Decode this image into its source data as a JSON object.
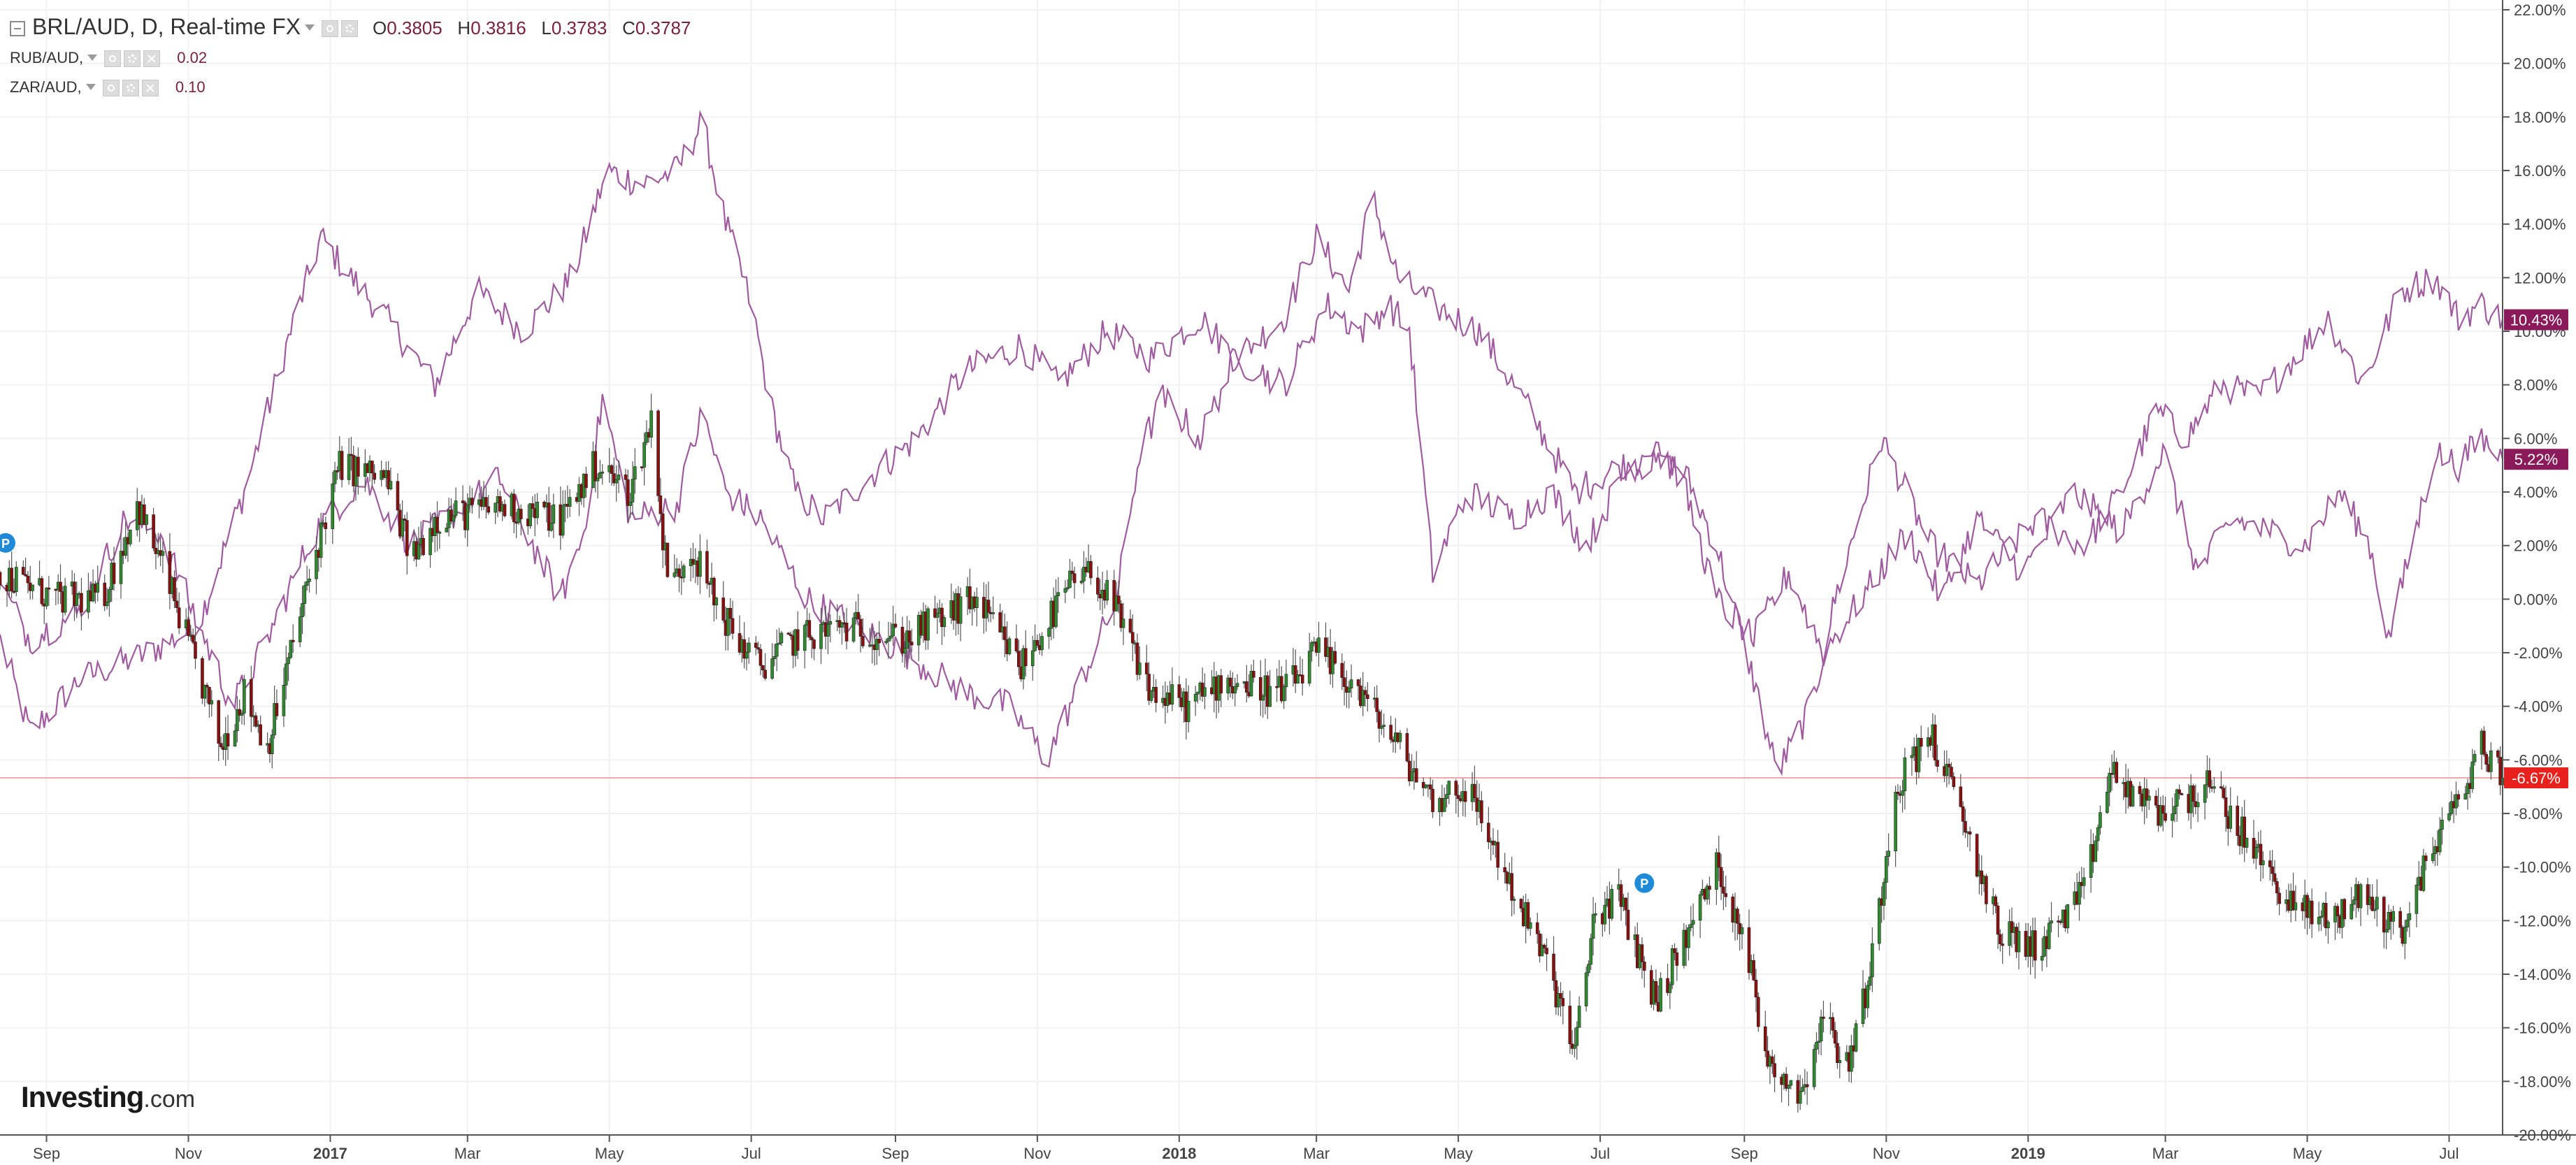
{
  "header": {
    "main": {
      "symbol": "BRL/AUD, D, Real-time FX",
      "ohlc": [
        {
          "label": "O",
          "value": "0.3805"
        },
        {
          "label": "H",
          "value": "0.3816"
        },
        {
          "label": "L",
          "value": "0.3783"
        },
        {
          "label": "C",
          "value": "0.3787"
        }
      ]
    },
    "compare": [
      {
        "symbol": "RUB/AUD,",
        "value": "0.02"
      },
      {
        "symbol": "ZAR/AUD,",
        "value": "0.10"
      }
    ]
  },
  "logo": {
    "bold": "Investing",
    "suffix": ".com"
  },
  "colors": {
    "up": "#2e8b2e",
    "down": "#8b0f0f",
    "wick": "#555555",
    "compare_line": "#a05ba0",
    "badge_compare": "#8b1a5a",
    "badge_main": "#e8211c",
    "grid": "#f1f1f1",
    "ref_line": "#f2a8a8"
  },
  "chart_data": {
    "type": "candlestick",
    "units": "percent change",
    "ylim": [
      -20,
      22
    ],
    "y_ticks": [
      22,
      20,
      18,
      16,
      14,
      12,
      10,
      8,
      6,
      4,
      2,
      0,
      -2,
      -4,
      -6,
      -8,
      -10,
      -12,
      -14,
      -16,
      -18,
      -20
    ],
    "y_tick_labels": [
      "22.00%",
      "20.00%",
      "18.00%",
      "16.00%",
      "14.00%",
      "12.00%",
      "10.00%",
      "8.00%",
      "6.00%",
      "4.00%",
      "2.00%",
      "0.00%",
      "-2.00%",
      "-4.00%",
      "-6.00%",
      "-8.00%",
      "-10.00%",
      "-12.00%",
      "-14.00%",
      "-16.00%",
      "-18.00%",
      "-20.00%"
    ],
    "x_range": [
      "2016-08-12",
      "2019-07-24"
    ],
    "x_ticks": [
      {
        "date": "2016-09-01",
        "label": "Sep",
        "bold": false
      },
      {
        "date": "2016-11-01",
        "label": "Nov",
        "bold": false
      },
      {
        "date": "2017-01-01",
        "label": "2017",
        "bold": true
      },
      {
        "date": "2017-03-01",
        "label": "Mar",
        "bold": false
      },
      {
        "date": "2017-05-01",
        "label": "May",
        "bold": false
      },
      {
        "date": "2017-07-01",
        "label": "Jul",
        "bold": false
      },
      {
        "date": "2017-09-01",
        "label": "Sep",
        "bold": false
      },
      {
        "date": "2017-11-01",
        "label": "Nov",
        "bold": false
      },
      {
        "date": "2018-01-01",
        "label": "2018",
        "bold": true
      },
      {
        "date": "2018-03-01",
        "label": "Mar",
        "bold": false
      },
      {
        "date": "2018-05-01",
        "label": "May",
        "bold": false
      },
      {
        "date": "2018-07-01",
        "label": "Jul",
        "bold": false
      },
      {
        "date": "2018-09-01",
        "label": "Sep",
        "bold": false
      },
      {
        "date": "2018-11-01",
        "label": "Nov",
        "bold": false
      },
      {
        "date": "2019-01-01",
        "label": "2019",
        "bold": true
      },
      {
        "date": "2019-03-01",
        "label": "Mar",
        "bold": false
      },
      {
        "date": "2019-05-01",
        "label": "May",
        "bold": false
      },
      {
        "date": "2019-07-01",
        "label": "Jul",
        "bold": false
      }
    ],
    "reference_line": -6.67,
    "last_value_labels": [
      {
        "series": "RUB/AUD",
        "value": 10.43,
        "text": "10.43%"
      },
      {
        "series": "ZAR/AUD",
        "value": 5.22,
        "text": "5.22%"
      },
      {
        "series": "BRL/AUD",
        "value": -6.67,
        "text": "-6.67%"
      }
    ],
    "markers": [
      {
        "date": "2016-08-12",
        "y": 2.1,
        "text": "P"
      },
      {
        "date": "2018-07-20",
        "y": -10.6,
        "text": "P"
      }
    ],
    "series": [
      {
        "name": "BRL/AUD",
        "style": "candles",
        "anchors": [
          [
            "2016-08-12",
            1.0
          ],
          [
            "2016-09-05",
            0.0
          ],
          [
            "2016-09-25",
            0.0
          ],
          [
            "2016-10-10",
            3.5
          ],
          [
            "2016-10-22",
            1.0
          ],
          [
            "2016-11-08",
            -3.5
          ],
          [
            "2016-11-15",
            -5.5
          ],
          [
            "2016-11-25",
            -3.5
          ],
          [
            "2016-12-05",
            -5.5
          ],
          [
            "2016-12-15",
            -2.0
          ],
          [
            "2016-12-25",
            1.5
          ],
          [
            "2017-01-05",
            5.0
          ],
          [
            "2017-01-25",
            4.5
          ],
          [
            "2017-02-05",
            1.5
          ],
          [
            "2017-02-15",
            3.0
          ],
          [
            "2017-03-15",
            3.5
          ],
          [
            "2017-04-10",
            3.0
          ],
          [
            "2017-04-25",
            5.0
          ],
          [
            "2017-05-10",
            4.0
          ],
          [
            "2017-05-20",
            7.0
          ],
          [
            "2017-05-24",
            2.0
          ],
          [
            "2017-05-28",
            0.5
          ],
          [
            "2017-06-05",
            2.0
          ],
          [
            "2017-06-15",
            0.0
          ],
          [
            "2017-06-25",
            -1.5
          ],
          [
            "2017-07-05",
            -2.5
          ],
          [
            "2017-07-20",
            -1.5
          ],
          [
            "2017-08-10",
            -1.0
          ],
          [
            "2017-09-05",
            -1.5
          ],
          [
            "2017-10-05",
            0.0
          ],
          [
            "2017-10-25",
            -2.5
          ],
          [
            "2017-11-15",
            0.5
          ],
          [
            "2017-11-25",
            1.0
          ],
          [
            "2017-12-05",
            -0.5
          ],
          [
            "2017-12-20",
            -3.5
          ],
          [
            "2018-01-05",
            -4.0
          ],
          [
            "2018-01-20",
            -3.0
          ],
          [
            "2018-02-15",
            -3.5
          ],
          [
            "2018-03-01",
            -2.0
          ],
          [
            "2018-03-20",
            -3.5
          ],
          [
            "2018-04-05",
            -5.5
          ],
          [
            "2018-04-20",
            -7.5
          ],
          [
            "2018-05-05",
            -7.0
          ],
          [
            "2018-05-25",
            -11.0
          ],
          [
            "2018-06-10",
            -14.0
          ],
          [
            "2018-06-20",
            -17.0
          ],
          [
            "2018-06-28",
            -12.0
          ],
          [
            "2018-07-08",
            -11.0
          ],
          [
            "2018-07-25",
            -15.0
          ],
          [
            "2018-08-10",
            -12.0
          ],
          [
            "2018-08-20",
            -10.0
          ],
          [
            "2018-09-01",
            -12.5
          ],
          [
            "2018-09-10",
            -17.0
          ],
          [
            "2018-09-25",
            -18.5
          ],
          [
            "2018-10-05",
            -15.5
          ],
          [
            "2018-10-15",
            -17.5
          ],
          [
            "2018-10-25",
            -14.0
          ],
          [
            "2018-11-05",
            -7.0
          ],
          [
            "2018-11-20",
            -5.0
          ],
          [
            "2018-12-05",
            -8.5
          ],
          [
            "2018-12-20",
            -12.5
          ],
          [
            "2019-01-05",
            -13.0
          ],
          [
            "2019-01-25",
            -11.0
          ],
          [
            "2019-02-05",
            -6.5
          ],
          [
            "2019-02-25",
            -8.0
          ],
          [
            "2019-03-20",
            -7.0
          ],
          [
            "2019-04-05",
            -9.0
          ],
          [
            "2019-04-25",
            -11.5
          ],
          [
            "2019-05-10",
            -12.0
          ],
          [
            "2019-05-25",
            -11.0
          ],
          [
            "2019-06-10",
            -12.5
          ],
          [
            "2019-06-25",
            -9.0
          ],
          [
            "2019-07-05",
            -7.5
          ],
          [
            "2019-07-15",
            -5.5
          ],
          [
            "2019-07-24",
            -6.67
          ]
        ]
      },
      {
        "name": "RUB/AUD",
        "style": "line",
        "anchors": [
          [
            "2016-08-12",
            -1.5
          ],
          [
            "2016-08-25",
            -5.0
          ],
          [
            "2016-09-15",
            -3.0
          ],
          [
            "2016-10-15",
            -2.0
          ],
          [
            "2016-11-05",
            -1.0
          ],
          [
            "2016-11-25",
            4.0
          ],
          [
            "2016-12-15",
            10.0
          ],
          [
            "2016-12-28",
            13.5
          ],
          [
            "2017-01-10",
            12.0
          ],
          [
            "2017-01-25",
            10.5
          ],
          [
            "2017-02-15",
            8.0
          ],
          [
            "2017-03-05",
            11.5
          ],
          [
            "2017-03-25",
            10.0
          ],
          [
            "2017-04-15",
            12.0
          ],
          [
            "2017-04-30",
            16.0
          ],
          [
            "2017-05-15",
            15.5
          ],
          [
            "2017-05-30",
            16.0
          ],
          [
            "2017-06-10",
            17.8
          ],
          [
            "2017-06-20",
            14.0
          ],
          [
            "2017-07-01",
            11.0
          ],
          [
            "2017-07-10",
            7.0
          ],
          [
            "2017-07-20",
            4.0
          ],
          [
            "2017-08-01",
            3.0
          ],
          [
            "2017-08-20",
            4.5
          ],
          [
            "2017-09-10",
            6.0
          ],
          [
            "2017-10-01",
            8.5
          ],
          [
            "2017-10-25",
            9.5
          ],
          [
            "2017-11-10",
            8.0
          ],
          [
            "2017-12-01",
            10.0
          ],
          [
            "2017-12-20",
            9.0
          ],
          [
            "2018-01-10",
            10.5
          ],
          [
            "2018-01-25",
            9.0
          ],
          [
            "2018-02-15",
            10.5
          ],
          [
            "2018-03-01",
            13.5
          ],
          [
            "2018-03-15",
            11.5
          ],
          [
            "2018-03-25",
            15.0
          ],
          [
            "2018-04-05",
            12.0
          ],
          [
            "2018-04-20",
            11.0
          ],
          [
            "2018-05-10",
            10.0
          ],
          [
            "2018-06-01",
            7.0
          ],
          [
            "2018-06-20",
            4.0
          ],
          [
            "2018-07-10",
            5.0
          ],
          [
            "2018-08-05",
            5.0
          ],
          [
            "2018-08-20",
            2.0
          ],
          [
            "2018-09-05",
            -3.0
          ],
          [
            "2018-09-15",
            -6.5
          ],
          [
            "2018-09-30",
            -4.0
          ],
          [
            "2018-10-10",
            0.0
          ],
          [
            "2018-10-30",
            6.0
          ],
          [
            "2018-11-20",
            2.0
          ],
          [
            "2018-12-10",
            0.5
          ],
          [
            "2019-01-05",
            3.0
          ],
          [
            "2019-01-25",
            2.0
          ],
          [
            "2019-02-10",
            4.0
          ],
          [
            "2019-02-25",
            7.0
          ],
          [
            "2019-03-10",
            6.0
          ],
          [
            "2019-03-25",
            8.0
          ],
          [
            "2019-04-10",
            7.5
          ],
          [
            "2019-04-25",
            9.0
          ],
          [
            "2019-05-10",
            10.5
          ],
          [
            "2019-05-25",
            8.0
          ],
          [
            "2019-06-10",
            11.5
          ],
          [
            "2019-06-25",
            12.0
          ],
          [
            "2019-07-05",
            10.5
          ],
          [
            "2019-07-15",
            11.0
          ],
          [
            "2019-07-24",
            10.43
          ]
        ]
      },
      {
        "name": "ZAR/AUD",
        "style": "line",
        "anchors": [
          [
            "2016-08-12",
            0.5
          ],
          [
            "2016-08-25",
            -1.5
          ],
          [
            "2016-09-15",
            -0.5
          ],
          [
            "2016-10-05",
            3.0
          ],
          [
            "2016-10-20",
            2.5
          ],
          [
            "2016-11-08",
            -1.5
          ],
          [
            "2016-11-20",
            -4.0
          ],
          [
            "2016-12-05",
            -1.5
          ],
          [
            "2016-12-25",
            2.5
          ],
          [
            "2017-01-15",
            4.5
          ],
          [
            "2017-02-05",
            2.0
          ],
          [
            "2017-02-20",
            3.0
          ],
          [
            "2017-03-15",
            4.5
          ],
          [
            "2017-04-01",
            1.5
          ],
          [
            "2017-04-10",
            0.0
          ],
          [
            "2017-04-20",
            2.5
          ],
          [
            "2017-04-28",
            7.5
          ],
          [
            "2017-05-10",
            3.0
          ],
          [
            "2017-05-30",
            3.5
          ],
          [
            "2017-06-10",
            7.0
          ],
          [
            "2017-06-20",
            4.0
          ],
          [
            "2017-07-05",
            3.0
          ],
          [
            "2017-07-25",
            0.0
          ],
          [
            "2017-08-15",
            -1.0
          ],
          [
            "2017-09-05",
            -2.0
          ],
          [
            "2017-10-01",
            -3.5
          ],
          [
            "2017-10-20",
            -4.0
          ],
          [
            "2017-11-05",
            -6.0
          ],
          [
            "2017-11-20",
            -3.0
          ],
          [
            "2017-12-05",
            0.0
          ],
          [
            "2017-12-15",
            5.5
          ],
          [
            "2017-12-25",
            7.5
          ],
          [
            "2018-01-10",
            6.0
          ],
          [
            "2018-01-25",
            9.0
          ],
          [
            "2018-02-15",
            8.0
          ],
          [
            "2018-03-05",
            11.0
          ],
          [
            "2018-03-20",
            10.0
          ],
          [
            "2018-04-01",
            11.0
          ],
          [
            "2018-04-10",
            10.0
          ],
          [
            "2018-04-20",
            1.0
          ],
          [
            "2018-05-05",
            4.0
          ],
          [
            "2018-05-25",
            3.0
          ],
          [
            "2018-06-10",
            4.0
          ],
          [
            "2018-06-25",
            2.0
          ],
          [
            "2018-07-10",
            4.5
          ],
          [
            "2018-07-25",
            6.0
          ],
          [
            "2018-08-05",
            4.5
          ],
          [
            "2018-08-20",
            0.0
          ],
          [
            "2018-09-05",
            -1.5
          ],
          [
            "2018-09-20",
            1.0
          ],
          [
            "2018-10-05",
            -2.0
          ],
          [
            "2018-10-25",
            0.5
          ],
          [
            "2018-11-10",
            2.5
          ],
          [
            "2018-11-25",
            0.0
          ],
          [
            "2018-12-10",
            3.0
          ],
          [
            "2018-12-30",
            1.0
          ],
          [
            "2019-01-20",
            4.0
          ],
          [
            "2019-02-10",
            2.5
          ],
          [
            "2019-02-28",
            5.5
          ],
          [
            "2019-03-15",
            1.0
          ],
          [
            "2019-03-30",
            3.0
          ],
          [
            "2019-04-15",
            2.5
          ],
          [
            "2019-04-30",
            2.0
          ],
          [
            "2019-05-15",
            4.0
          ],
          [
            "2019-05-28",
            2.0
          ],
          [
            "2019-06-05",
            -1.5
          ],
          [
            "2019-06-15",
            2.0
          ],
          [
            "2019-06-25",
            5.5
          ],
          [
            "2019-07-05",
            5.0
          ],
          [
            "2019-07-15",
            6.0
          ],
          [
            "2019-07-24",
            5.22
          ]
        ]
      }
    ]
  }
}
